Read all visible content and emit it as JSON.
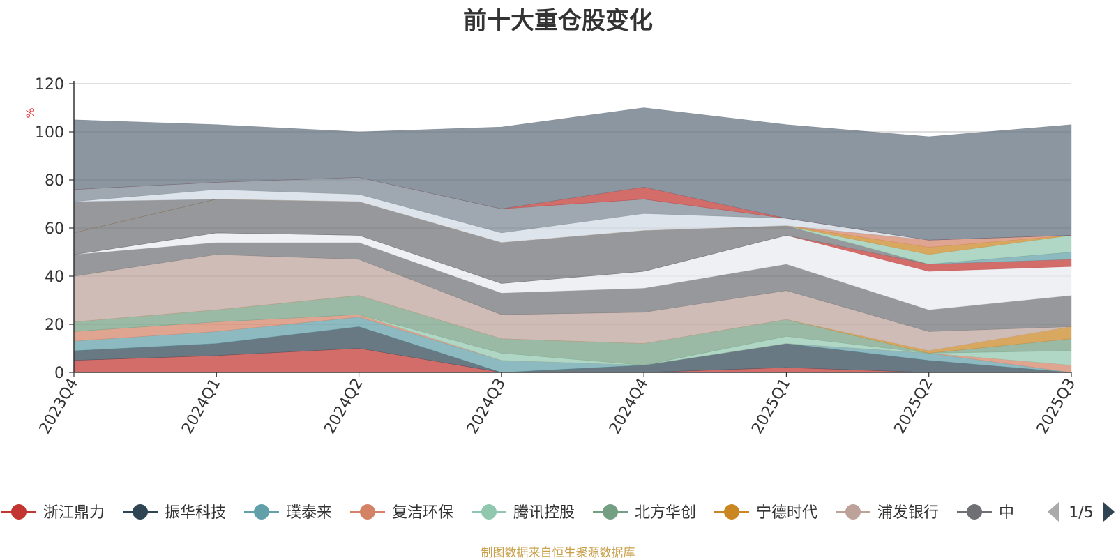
{
  "chart_data": {
    "type": "area",
    "title": "前十大重仓股变化",
    "ylabel": "%",
    "ylim": [
      0,
      120
    ],
    "yticks": [
      0,
      20,
      40,
      60,
      80,
      100,
      120
    ],
    "categories": [
      "2023Q4",
      "2024Q1",
      "2024Q2",
      "2024Q3",
      "2024Q4",
      "2025Q1",
      "2025Q2",
      "2025Q3"
    ],
    "series": [
      {
        "name": "浙江鼎力",
        "color": "#c23531",
        "values": [
          5,
          7,
          10,
          0,
          0,
          2,
          0,
          0
        ]
      },
      {
        "name": "振华科技",
        "color": "#2f4554",
        "values": [
          4,
          5,
          9,
          0,
          3,
          10,
          5,
          0
        ]
      },
      {
        "name": "璞泰来",
        "color": "#61a0a8",
        "values": [
          4,
          5,
          4,
          5,
          0,
          0,
          3,
          0
        ]
      },
      {
        "name": "复洁环保",
        "color": "#d48265",
        "values": [
          4,
          4,
          1,
          0,
          0,
          0,
          0,
          3
        ]
      },
      {
        "name": "腾讯控股",
        "color": "#91c7ae",
        "values": [
          0,
          0,
          0,
          3,
          0,
          3,
          0,
          6
        ]
      },
      {
        "name": "北方华创",
        "color": "#749f83",
        "values": [
          4,
          5,
          8,
          6,
          9,
          7,
          0,
          5
        ]
      },
      {
        "name": "宁德时代",
        "color": "#ca8622",
        "values": [
          0,
          0,
          0,
          0,
          0,
          0,
          1,
          5
        ]
      },
      {
        "name": "浦发银行",
        "color": "#bda29a",
        "values": [
          19,
          23,
          15,
          10,
          13,
          12,
          8,
          0
        ]
      },
      {
        "name": "中",
        "color": "#6e7074",
        "values": [
          9,
          5,
          7,
          9,
          10,
          11,
          9,
          13
        ]
      },
      {
        "name": "",
        "color": "#e8eaf0",
        "values": [
          0,
          4,
          3,
          4,
          7,
          12,
          16,
          12
        ]
      },
      {
        "name": "",
        "color": "#c23531",
        "values": [
          0,
          0,
          0,
          0,
          0,
          0,
          3,
          3
        ]
      },
      {
        "name": "",
        "color": "#61a0a8",
        "values": [
          0,
          0,
          0,
          0,
          0,
          0,
          0,
          3
        ]
      },
      {
        "name": "",
        "color": "#6e7074",
        "values": [
          9,
          14,
          14,
          17,
          17,
          4,
          0,
          0
        ]
      },
      {
        "name": "",
        "color": "#91c7ae",
        "values": [
          0,
          0,
          0,
          0,
          0,
          0,
          4,
          7
        ]
      },
      {
        "name": "",
        "color": "#ca8622",
        "values": [
          0,
          0,
          0,
          0,
          0,
          0,
          3,
          0
        ]
      },
      {
        "name": "",
        "color": "#d48265",
        "values": [
          0,
          0,
          0,
          0,
          0,
          0,
          3,
          0
        ]
      },
      {
        "name": "",
        "color": "#6e7074",
        "values": [
          13,
          0,
          0,
          0,
          0,
          0,
          0,
          0
        ]
      },
      {
        "name": "",
        "color": "#d1dae3",
        "values": [
          0,
          4,
          3,
          4,
          7,
          3,
          0,
          0
        ]
      },
      {
        "name": "",
        "color": "#7a8791",
        "values": [
          5,
          3,
          7,
          10,
          6,
          0,
          0,
          0
        ]
      },
      {
        "name": "",
        "color": "#c23531",
        "values": [
          0,
          0,
          0,
          0,
          5,
          0,
          0,
          0
        ]
      },
      {
        "name": "",
        "color": "#5f6e7b",
        "values": [
          29,
          24,
          19,
          34,
          33,
          39,
          43,
          46
        ]
      }
    ],
    "legend": {
      "placement": "bottom",
      "visible": [
        "浙江鼎力",
        "振华科技",
        "璞泰来",
        "复洁环保",
        "腾讯控股",
        "北方华创",
        "宁德时代",
        "浦发银行",
        "中"
      ],
      "page": "1/5"
    }
  },
  "source_note": "制图数据来自恒生聚源数据库"
}
